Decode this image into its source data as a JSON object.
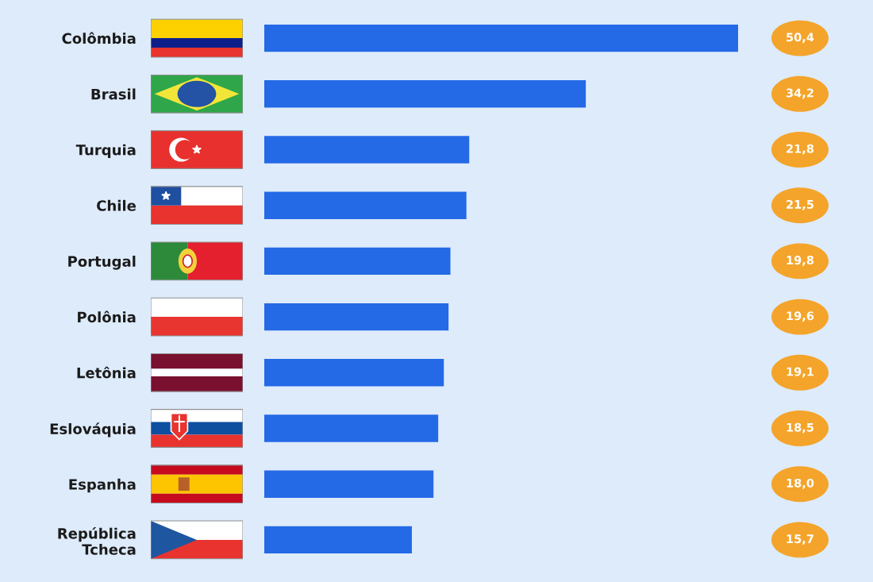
{
  "chart_data": {
    "type": "bar",
    "orientation": "horizontal",
    "categories": [
      "Colômbia",
      "Brasil",
      "Turquia",
      "Chile",
      "Portugal",
      "Polônia",
      "Letônia",
      "Eslováquia",
      "Espanha",
      "República\nTcheca"
    ],
    "values": [
      50.4,
      34.2,
      21.8,
      21.5,
      19.8,
      19.6,
      19.1,
      18.5,
      18.0,
      15.7
    ],
    "value_labels": [
      "50,4",
      "34,2",
      "21,8",
      "21,5",
      "19,8",
      "19,6",
      "19,1",
      "18,5",
      "18,0",
      "15,7"
    ],
    "color": "#2469e6",
    "tick_labels": "y"
  }
}
